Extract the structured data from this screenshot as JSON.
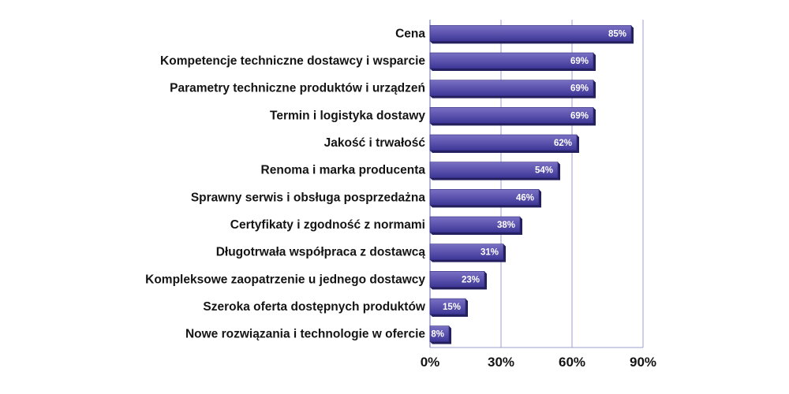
{
  "chart_data": {
    "type": "bar",
    "orientation": "horizontal",
    "categories": [
      "Cena",
      "Kompetencje techniczne dostawcy i wsparcie",
      "Parametry techniczne produktów i urządzeń",
      "Termin i logistyka dostawy",
      "Jakość i trwałość",
      "Renoma i marka producenta",
      "Sprawny serwis i obsługa posprzedażna",
      "Certyfikaty i zgodność z normami",
      "Długotrwała współpraca z dostawcą",
      "Kompleksowe zaopatrzenie u jednego dostawcy",
      "Szeroka oferta dostępnych produktów",
      "Nowe rozwiązania i technologie w ofercie"
    ],
    "values": [
      85,
      69,
      69,
      69,
      62,
      54,
      46,
      38,
      31,
      23,
      15,
      8
    ],
    "value_labels": [
      "85%",
      "69%",
      "69%",
      "69%",
      "62%",
      "54%",
      "46%",
      "38%",
      "31%",
      "23%",
      "15%",
      "8%"
    ],
    "xlim": [
      0,
      90
    ],
    "xticks": [
      0,
      30,
      60,
      90
    ],
    "xtick_labels": [
      "0%",
      "30%",
      "60%",
      "90%"
    ],
    "grid": "vertical",
    "legend": "none",
    "title": "",
    "xlabel": "",
    "ylabel": "",
    "colors": {
      "bar_top": "#7a71c4",
      "bar_bottom": "#3d3696",
      "bar_shadow": "#24205e",
      "axis": "#9c9ccc",
      "text": "#141414",
      "value_text": "#ffffff"
    }
  }
}
